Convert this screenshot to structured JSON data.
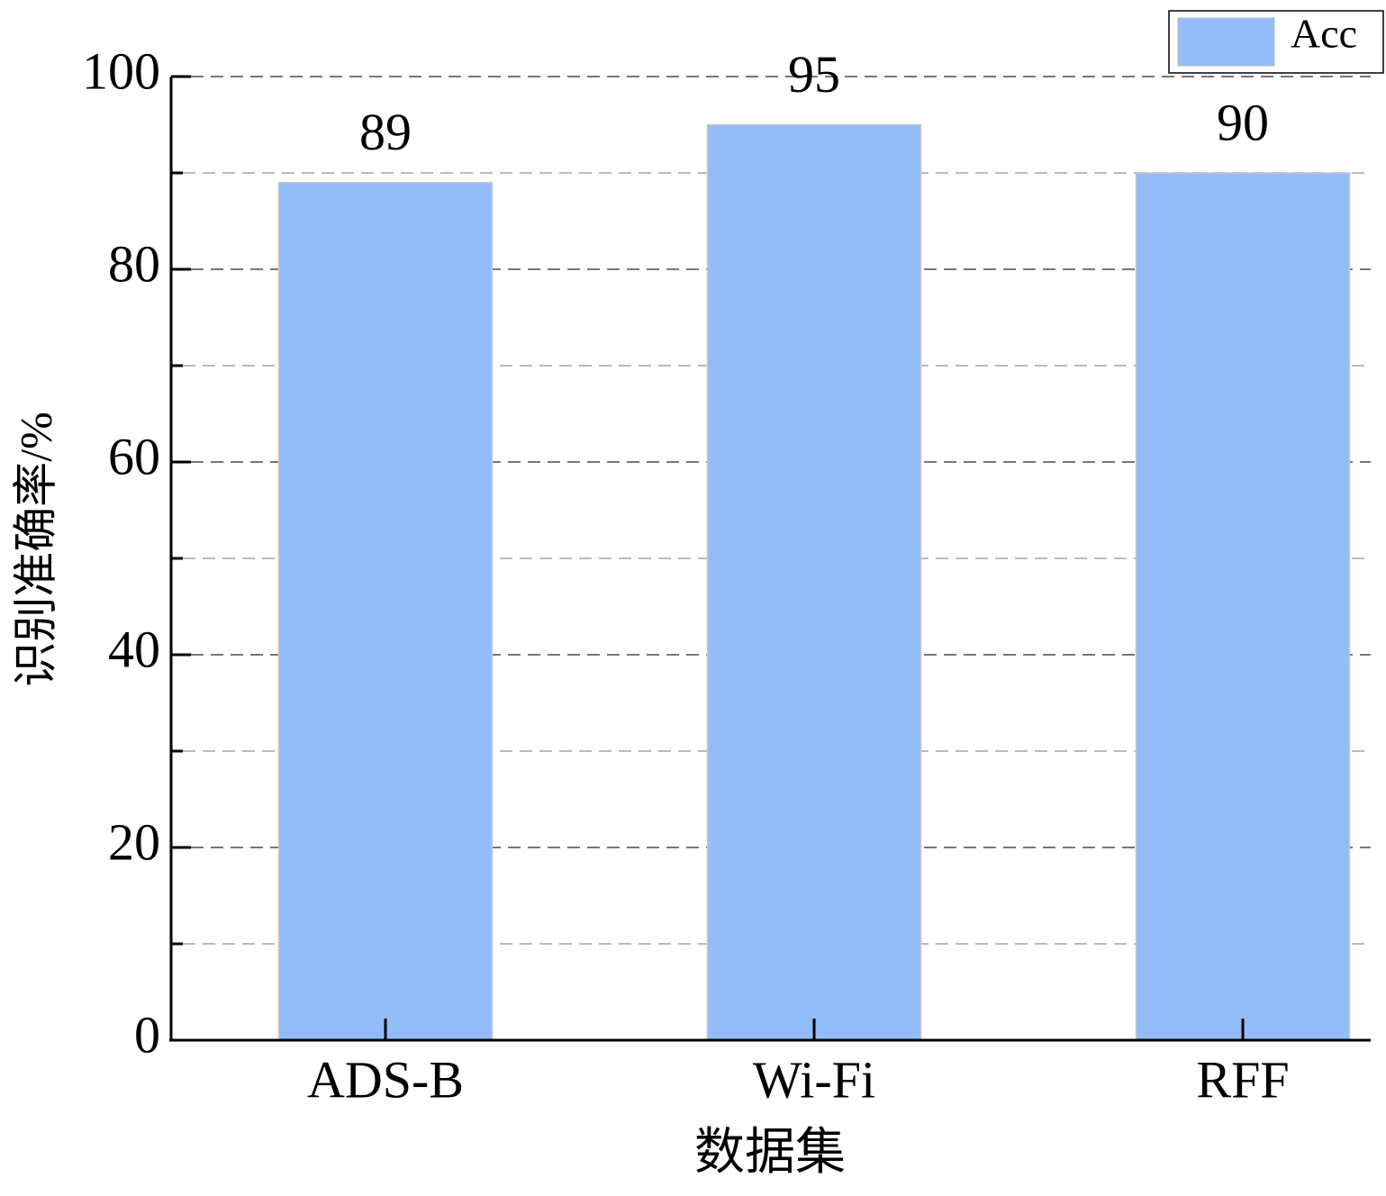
{
  "chart_data": {
    "type": "bar",
    "categories": [
      "ADS-B",
      "Wi-Fi",
      "RFF"
    ],
    "series": [
      {
        "name": "Acc",
        "color": "#92bdf8",
        "values": [
          89,
          95,
          90
        ]
      }
    ],
    "x_label": "数据集",
    "y_label": "识别准确率/%",
    "ylim": [
      0,
      100
    ],
    "yticks": [
      0,
      20,
      40,
      60,
      80,
      100
    ],
    "minor_yticks": [
      10,
      30,
      50,
      70,
      90
    ],
    "grid": true,
    "legend": "upper right"
  }
}
